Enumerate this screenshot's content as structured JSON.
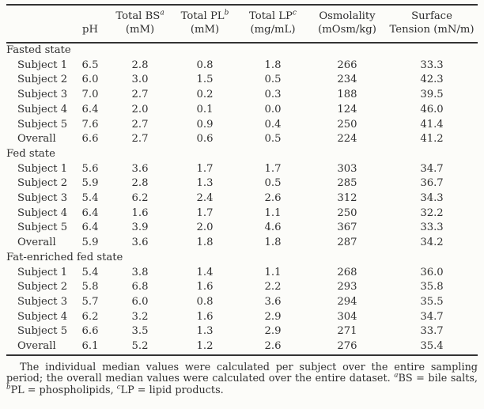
{
  "header": {
    "columns": [
      {
        "line1": "",
        "sup": "",
        "line2": ""
      },
      {
        "line1": "",
        "sup": "",
        "line2": "pH"
      },
      {
        "line1": "Total BS",
        "sup": "a",
        "line2": "(mM)"
      },
      {
        "line1": "Total PL",
        "sup": "b",
        "line2": "(mM)"
      },
      {
        "line1": "Total LP",
        "sup": "c",
        "line2": "(mg/mL)"
      },
      {
        "line1": "Osmolality",
        "sup": "",
        "line2": "(mOsm/kg)"
      },
      {
        "line1": "Surface",
        "sup": "",
        "line2": "Tension (mN/m)"
      }
    ]
  },
  "table": {
    "sections": [
      {
        "label": "Fasted state",
        "rows": [
          {
            "label": "Subject 1",
            "values": [
              "6.5",
              "2.8",
              "0.8",
              "1.8",
              "266",
              "33.3"
            ]
          },
          {
            "label": "Subject 2",
            "values": [
              "6.0",
              "3.0",
              "1.5",
              "0.5",
              "234",
              "42.3"
            ]
          },
          {
            "label": "Subject 3",
            "values": [
              "7.0",
              "2.7",
              "0.2",
              "0.3",
              "188",
              "39.5"
            ]
          },
          {
            "label": "Subject 4",
            "values": [
              "6.4",
              "2.0",
              "0.1",
              "0.0",
              "124",
              "46.0"
            ]
          },
          {
            "label": "Subject 5",
            "values": [
              "7.6",
              "2.7",
              "0.9",
              "0.4",
              "250",
              "41.4"
            ]
          },
          {
            "label": "Overall",
            "values": [
              "6.6",
              "2.7",
              "0.6",
              "0.5",
              "224",
              "41.2"
            ]
          }
        ]
      },
      {
        "label": "Fed state",
        "rows": [
          {
            "label": "Subject 1",
            "values": [
              "5.6",
              "3.6",
              "1.7",
              "1.7",
              "303",
              "34.7"
            ]
          },
          {
            "label": "Subject 2",
            "values": [
              "5.9",
              "2.8",
              "1.3",
              "0.5",
              "285",
              "36.7"
            ]
          },
          {
            "label": "Subject 3",
            "values": [
              "5.4",
              "6.2",
              "2.4",
              "2.6",
              "312",
              "34.3"
            ]
          },
          {
            "label": "Subject 4",
            "values": [
              "6.4",
              "1.6",
              "1.7",
              "1.1",
              "250",
              "32.2"
            ]
          },
          {
            "label": "Subject 5",
            "values": [
              "6.4",
              "3.9",
              "2.0",
              "4.6",
              "367",
              "33.3"
            ]
          },
          {
            "label": "Overall",
            "values": [
              "5.9",
              "3.6",
              "1.8",
              "1.8",
              "287",
              "34.2"
            ]
          }
        ]
      },
      {
        "label": "Fat-enriched fed state",
        "rows": [
          {
            "label": "Subject 1",
            "values": [
              "5.4",
              "3.8",
              "1.4",
              "1.1",
              "268",
              "36.0"
            ]
          },
          {
            "label": "Subject 2",
            "values": [
              "5.8",
              "6.8",
              "1.6",
              "2.2",
              "293",
              "35.8"
            ]
          },
          {
            "label": "Subject 3",
            "values": [
              "5.7",
              "6.0",
              "0.8",
              "3.6",
              "294",
              "35.5"
            ]
          },
          {
            "label": "Subject 4",
            "values": [
              "6.2",
              "3.2",
              "1.6",
              "2.9",
              "304",
              "34.7"
            ]
          },
          {
            "label": "Subject 5",
            "values": [
              "6.6",
              "3.5",
              "1.3",
              "2.9",
              "271",
              "33.7"
            ]
          },
          {
            "label": "Overall",
            "values": [
              "6.1",
              "5.2",
              "1.2",
              "2.6",
              "276",
              "35.4"
            ]
          }
        ]
      }
    ]
  },
  "footnote": {
    "body": "The individual median values were calculated per subject over the entire sampling period; the overall median values were calculated over the entire dataset. ",
    "definitions": [
      {
        "sup": "a",
        "text": "BS = bile salts, "
      },
      {
        "sup": "b",
        "text": "PL = phospholipids, "
      },
      {
        "sup": "c",
        "text": "LP = lipid products."
      }
    ]
  }
}
